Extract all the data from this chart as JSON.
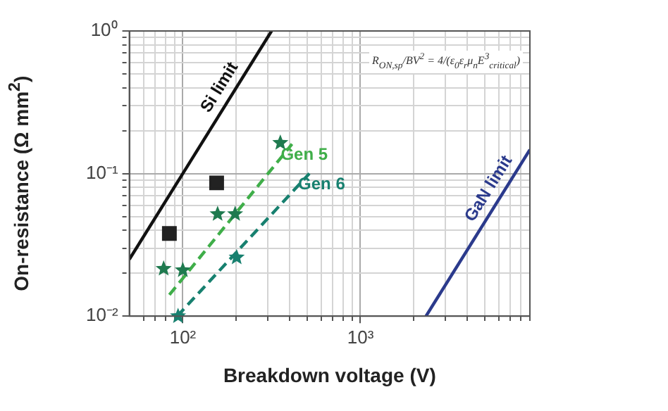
{
  "chart_data": {
    "type": "line",
    "xlabel": "Breakdown voltage (V)",
    "ylabel": "On-resistance (Ω mm$^{2}$)",
    "log": "xy",
    "grid": true,
    "legend": false,
    "xlim": [
      50,
      9000
    ],
    "ylim": [
      0.01,
      1
    ],
    "xticks": [
      {
        "value": 60,
        "label": null
      },
      {
        "value": 70,
        "label": null
      },
      {
        "value": 80,
        "label": null
      },
      {
        "value": 90,
        "label": null
      },
      {
        "value": 100,
        "label": "10²"
      },
      {
        "value": 200,
        "label": null
      },
      {
        "value": 300,
        "label": null
      },
      {
        "value": 400,
        "label": null
      },
      {
        "value": 500,
        "label": null
      },
      {
        "value": 600,
        "label": null
      },
      {
        "value": 700,
        "label": null
      },
      {
        "value": 800,
        "label": null
      },
      {
        "value": 900,
        "label": null
      },
      {
        "value": 1000,
        "label": "10³"
      },
      {
        "value": 2000,
        "label": null
      },
      {
        "value": 3000,
        "label": null
      },
      {
        "value": 4000,
        "label": null
      },
      {
        "value": 5000,
        "label": null
      },
      {
        "value": 6000,
        "label": null
      },
      {
        "value": 7000,
        "label": null
      },
      {
        "value": 8000,
        "label": null
      },
      {
        "value": 9000,
        "label": null
      }
    ],
    "yticks": [
      {
        "value": 0.01,
        "label": "10⁻²"
      },
      {
        "value": 0.02,
        "label": null
      },
      {
        "value": 0.03,
        "label": null
      },
      {
        "value": 0.04,
        "label": null
      },
      {
        "value": 0.05,
        "label": null
      },
      {
        "value": 0.06,
        "label": null
      },
      {
        "value": 0.07,
        "label": null
      },
      {
        "value": 0.08,
        "label": null
      },
      {
        "value": 0.09,
        "label": null
      },
      {
        "value": 0.1,
        "label": "10⁻¹"
      },
      {
        "value": 0.2,
        "label": null
      },
      {
        "value": 0.3,
        "label": null
      },
      {
        "value": 0.4,
        "label": null
      },
      {
        "value": 0.5,
        "label": null
      },
      {
        "value": 0.6,
        "label": null
      },
      {
        "value": 0.7,
        "label": null
      },
      {
        "value": 0.8,
        "label": null
      },
      {
        "value": 0.9,
        "label": null
      },
      {
        "value": 1,
        "label": "10⁰"
      }
    ],
    "annotations": [
      "R$_{ON,sp}$/BV$^{2}$ = 4/(ε$_{0}$ε$_{r}$μ$_{n}$E$^{3}$$_{critical}$)"
    ],
    "series": [
      {
        "name": "Si limit",
        "color": "#111111",
        "line_style": "solid",
        "marker": "none",
        "x": [
          50,
          316
        ],
        "values": [
          0.025,
          1
        ]
      },
      {
        "name": "GaN limit",
        "color": "#2b3a8c",
        "line_style": "solid",
        "marker": "none",
        "x": [
          2340,
          9000
        ],
        "values": [
          0.01,
          0.147
        ]
      },
      {
        "name": "Gen 5",
        "color": "#3fae49",
        "line_style": "dashed",
        "marker": "none",
        "x": [
          84,
          412
        ],
        "values": [
          0.0141,
          0.161
        ]
      },
      {
        "name": "Gen 6",
        "color": "#17806f",
        "line_style": "dashed",
        "marker": "none",
        "x": [
          93,
          516
        ],
        "values": [
          0.01,
          0.1
        ]
      },
      {
        "type": "scatter",
        "color": "#1f7a4f",
        "marker": "star",
        "x": [
          78,
          100,
          157,
          197,
          354
        ],
        "values": [
          0.0215,
          0.021,
          0.052,
          0.052,
          0.164
        ]
      },
      {
        "type": "scatter",
        "color": "#17806f",
        "marker": "star",
        "x": [
          94,
          201
        ],
        "values": [
          0.01,
          0.0258
        ]
      },
      {
        "type": "scatter",
        "color": "#222222",
        "marker": "square",
        "x": [
          84,
          155
        ],
        "values": [
          0.038,
          0.086
        ]
      }
    ]
  }
}
